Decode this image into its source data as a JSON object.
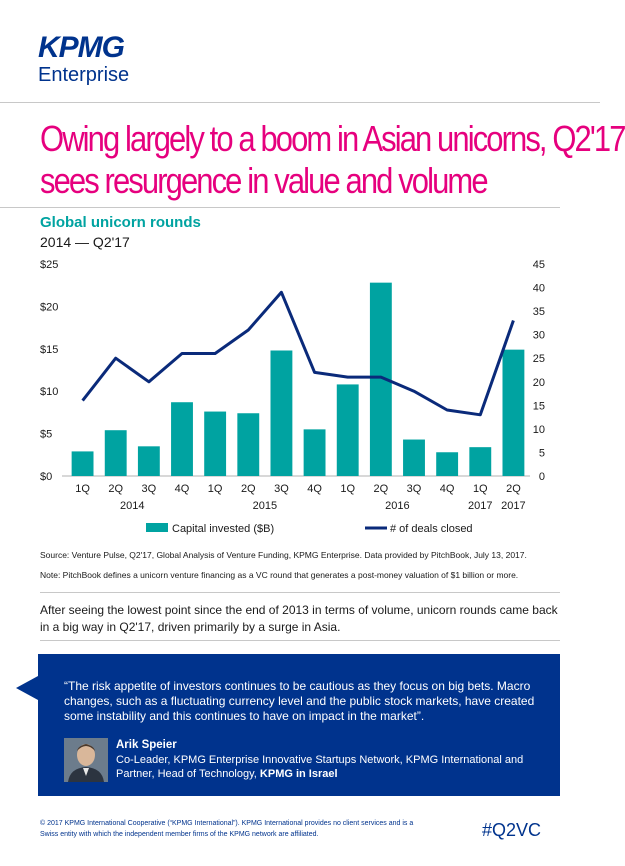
{
  "brand": {
    "logo_text": "KPMG",
    "logo_sub": "Enterprise",
    "primary_color": "#00338d",
    "accent_color": "#e6007e",
    "teal_color": "#00a3a1"
  },
  "headline": {
    "line1": "Owing largely to a boom in Asian unicorns, Q2'17",
    "line2": "sees resurgence in value and volume"
  },
  "chart_data": {
    "type": "bar+line",
    "title": "Global unicorn rounds",
    "subtitle": "2014 — Q2'17",
    "categories": [
      "1Q",
      "2Q",
      "3Q",
      "4Q",
      "1Q",
      "2Q",
      "3Q",
      "4Q",
      "1Q",
      "2Q",
      "3Q",
      "4Q",
      "1Q",
      "2Q"
    ],
    "year_labels": [
      {
        "label": "2014",
        "index": 1.5
      },
      {
        "label": "2015",
        "index": 5.5
      },
      {
        "label": "2016",
        "index": 9.5
      },
      {
        "label": "2017",
        "index": 12
      },
      {
        "label": "2017",
        "index": 13
      }
    ],
    "series": [
      {
        "name": "Capital invested ($B)",
        "type": "bar",
        "axis": "left",
        "values": [
          2.9,
          5.4,
          3.5,
          8.7,
          7.6,
          7.4,
          14.8,
          5.5,
          10.8,
          22.8,
          4.3,
          2.8,
          3.4,
          14.9
        ]
      },
      {
        "name": "# of deals closed",
        "type": "line",
        "axis": "right",
        "values": [
          16,
          25,
          20,
          26,
          26,
          31,
          39,
          22,
          21,
          21,
          18,
          14,
          13,
          33
        ]
      }
    ],
    "left_axis": {
      "ticks": [
        "$0",
        "$5",
        "$10",
        "$15",
        "$20",
        "$25"
      ],
      "ylim": [
        0,
        25
      ]
    },
    "right_axis": {
      "ticks": [
        "0",
        "5",
        "10",
        "15",
        "20",
        "25",
        "30",
        "35",
        "40",
        "45"
      ],
      "ylim": [
        0,
        45
      ]
    },
    "legend_placement": "bottom",
    "bar_color": "#00a3a1",
    "line_color": "#0a2a7a"
  },
  "source_text": "Source: Venture Pulse, Q2'17, Global Analysis of Venture Funding, KPMG Enterprise. Data provided by PitchBook, July 13, 2017.",
  "note_text": "Note: PitchBook defines a unicorn venture financing as a VC round that generates a post-money valuation of $1 billion or more.",
  "intro_text": "After seeing the lowest point since the end of 2013 in terms of volume, unicorn rounds came back in a big way in Q2'17, driven primarily by a surge in Asia.",
  "quote": {
    "text": "“The risk appetite of investors continues to be cautious as they focus on big bets. Macro changes, such as a fluctuating currency level and the public stock markets, have created some instability and this continues to have on impact in the market”.",
    "speaker_name": "Arik Speier",
    "speaker_title": "Co-Leader, KPMG Enterprise Innovative Startups Network, KPMG International and Partner, Head of Technology,",
    "speaker_org": "KPMG in Israel"
  },
  "footer": {
    "legal": "© 2017 KPMG International Cooperative (“KPMG International”). KPMG International provides no client services and is a Swiss entity with which the independent member firms of the KPMG network are affiliated.",
    "hashtag": "#Q2VC"
  }
}
